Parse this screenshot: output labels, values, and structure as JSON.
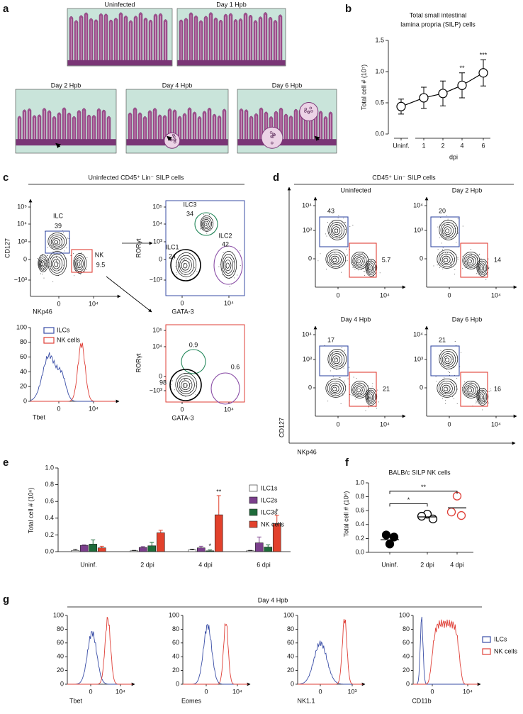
{
  "figure": {
    "panel_letters": [
      "a",
      "b",
      "c",
      "d",
      "e",
      "f",
      "g"
    ],
    "histology_labels": [
      "Uninfected",
      "Day 1 Hpb",
      "Day 2 Hpb",
      "Day 4 Hpb",
      "Day 6 Hpb"
    ],
    "colors": {
      "ilc": "#3a4ea6",
      "nk": "#df3f37",
      "ilc3": "#23875a",
      "ilc2": "#8a4ea6"
    },
    "panel_c": {
      "title": "Uninfected CD45⁺ Lin⁻ SILP cells",
      "dot_plots": [
        {
          "y_label": "CD127",
          "x_label": "NKp46",
          "y_ticks": [
            "10⁵",
            "10⁴",
            "10³",
            "0",
            "−10³"
          ],
          "x_ticks": [
            "0",
            "10⁴"
          ],
          "gates": [
            {
              "label": "ILC",
              "value": 39
            },
            {
              "label": "NK",
              "value": 9.5
            }
          ]
        },
        {
          "y_label": "RORγt",
          "x_label": "GATA-3",
          "y_ticks": [
            "10⁵",
            "10⁴",
            "10³",
            "0",
            "−10³"
          ],
          "x_ticks": [
            "0",
            "10⁴"
          ],
          "gates": [
            {
              "label": "ILC3",
              "value": 34
            },
            {
              "label": "ILC1",
              "value": 24
            },
            {
              "label": "ILC2",
              "value": 42
            }
          ]
        },
        {
          "y_label": "RORγt",
          "x_label": "GATA-3",
          "y_ticks": [
            "10⁵",
            "10⁴",
            "0",
            "−10³"
          ],
          "x_ticks": [
            "0",
            "10⁴"
          ],
          "gates": [
            {
              "value": 0.9
            },
            {
              "value": 0.6
            },
            {
              "value": 98
            }
          ]
        }
      ],
      "histogram": {
        "x_label": "Tbet",
        "x_ticks": [
          "0",
          "10⁴"
        ],
        "yticks": [
          0,
          20,
          40,
          60,
          80,
          100
        ],
        "ylim": [
          0,
          100
        ],
        "legend": [
          "ILCs",
          "NK cells"
        ]
      }
    },
    "panel_d": {
      "title": "CD45⁺ Lin⁻ SILP cells",
      "y_label": "CD127",
      "x_label": "NKp46",
      "y_ticks": [
        "10⁴",
        "10³",
        "0"
      ],
      "x_ticks": [
        "0",
        "10⁴"
      ],
      "plots": [
        {
          "title": "Uninfected",
          "gates": [
            43,
            5.7
          ]
        },
        {
          "title": "Day 2 Hpb",
          "gates": [
            20,
            14
          ]
        },
        {
          "title": "Day 4 Hpb",
          "gates": [
            17,
            21
          ]
        },
        {
          "title": "Day 6 Hpb",
          "gates": [
            21,
            16
          ]
        }
      ]
    },
    "panel_g": {
      "title": "Day 4 Hpb",
      "yticks": [
        0,
        20,
        40,
        60,
        80,
        100
      ],
      "ylim": [
        0,
        100
      ],
      "legend": [
        "ILCs",
        "NK cells"
      ],
      "plots": [
        {
          "x_label": "Tbet",
          "x_ticks": [
            "0",
            "10⁴"
          ]
        },
        {
          "x_label": "Eomes",
          "x_ticks": [
            "0",
            "10⁴"
          ]
        },
        {
          "x_label": "NK1.1",
          "x_ticks": [
            "0",
            "10³"
          ]
        },
        {
          "x_label": "CD11b",
          "x_ticks": [
            "0",
            "10⁴"
          ]
        }
      ]
    }
  },
  "chart_data": [
    {
      "type": "line",
      "title": [
        "Total small intestinal",
        "lamina propria (SILP) cells"
      ],
      "y_label": "Total cell # (10⁷)",
      "x_label": "dpi",
      "categories": [
        "Uninf.",
        "1",
        "2",
        "4",
        "6"
      ],
      "values": [
        0.44,
        0.58,
        0.65,
        0.78,
        0.98
      ],
      "errors": [
        0.12,
        0.17,
        0.2,
        0.2,
        0.21
      ],
      "annotations": [
        null,
        null,
        null,
        "**",
        "***"
      ],
      "color": "#000000",
      "ylim": [
        0,
        1.5
      ],
      "yticks": [
        {
          "value": 0,
          "label": "0.0"
        },
        0.5,
        {
          "value": 1,
          "label": "1.0"
        },
        1.5
      ]
    },
    {
      "type": "bar",
      "y_label": "Total cell # (10⁶)",
      "categories": [
        "Uninf.",
        "2 dpi",
        "4 dpi",
        "6 dpi"
      ],
      "series": [
        {
          "name": "ILC1s",
          "color": "#ffffff",
          "values": [
            0.015,
            0.01,
            0.02,
            0.01
          ],
          "errors": [
            0.01,
            0.005,
            0.01,
            0.005
          ]
        },
        {
          "name": "ILC2s",
          "color": "#7b3f8c",
          "values": [
            0.075,
            0.05,
            0.045,
            0.105
          ],
          "errors": [
            0.005,
            0.01,
            0.02,
            0.07
          ]
        },
        {
          "name": "ILC3s",
          "color": "#1e6b3a",
          "values": [
            0.09,
            0.07,
            0.01,
            0.055
          ],
          "errors": [
            0.05,
            0.04,
            0.01,
            0.025
          ],
          "annotations": [
            null,
            null,
            "*",
            null
          ]
        },
        {
          "name": "NK cells",
          "color": "#e2412c",
          "values": [
            0.045,
            0.225,
            0.44,
            0.335
          ],
          "errors": [
            0.02,
            0.03,
            0.23,
            0.1
          ],
          "annotations": [
            null,
            null,
            "**",
            "*"
          ]
        }
      ],
      "ylim": [
        0,
        1
      ],
      "yticks": [
        {
          "value": 0,
          "label": "0.0"
        },
        0.2,
        0.4,
        0.6,
        0.8,
        {
          "value": 1,
          "label": "1.0"
        }
      ],
      "legend": "right"
    },
    {
      "type": "scatter",
      "title": "BALB/c  SILP NK cells",
      "y_label": "Total cell # (10⁶)",
      "categories": [
        "Uninf.",
        "2 dpi",
        "4 dpi"
      ],
      "points": [
        [
          0.25,
          0.22,
          0.12
        ],
        [
          0.55,
          0.52,
          0.48
        ],
        [
          0.81,
          0.58,
          0.53
        ]
      ],
      "means": [
        0.18,
        0.51,
        0.64
      ],
      "colors": [
        "#000000",
        "#000000",
        "#df3f37"
      ],
      "filled": [
        true,
        false,
        false
      ],
      "brackets": [
        {
          "label": "*",
          "from": 0,
          "to": 1,
          "y": 0.7
        },
        {
          "label": "**",
          "from": 0,
          "to": 2,
          "y": 0.88
        }
      ],
      "ylim": [
        0,
        1
      ],
      "yticks": [
        {
          "value": 0,
          "label": "0.0"
        },
        0.2,
        0.4,
        0.6,
        0.8,
        {
          "value": 1,
          "label": "1.0"
        }
      ]
    }
  ]
}
